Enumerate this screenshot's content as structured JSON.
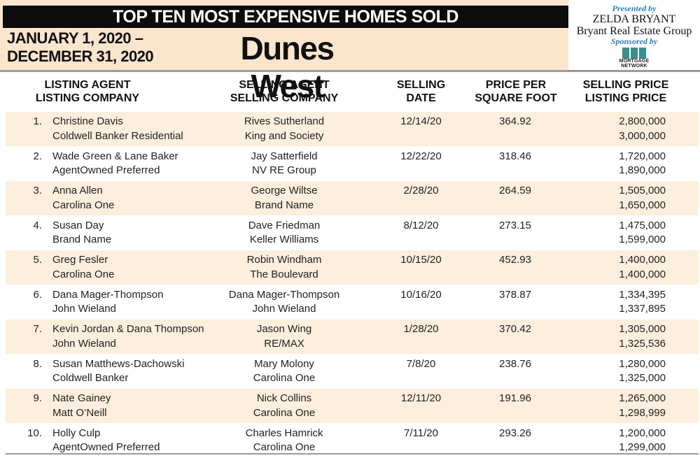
{
  "header": {
    "title": "TOP TEN MOST EXPENSIVE HOMES SOLD",
    "date_line1": "JANUARY 1, 2020 –",
    "date_line2": "DECEMBER 31, 2020",
    "community": "Dunes West"
  },
  "sponsor": {
    "presented_by": "Presented by",
    "agent": "ZELDA BRYANT",
    "group": "Bryant Real Estate Group",
    "sponsored_by": "Sponsored by",
    "logo_text1": "MORTGAGE",
    "logo_text2": "NETWORK",
    "logo_color": "#3a8f8c"
  },
  "columns": {
    "listing_1": "LISTING AGENT",
    "listing_2": "LISTING COMPANY",
    "selling_1": "SELLING AGENT",
    "selling_2": "SELLING COMPANY",
    "date_1": "SELLING",
    "date_2": "DATE",
    "ppsf_1": "PRICE PER",
    "ppsf_2": "SQUARE FOOT",
    "price_1": "SELLING PRICE",
    "price_2": "LISTING PRICE"
  },
  "rows": [
    {
      "num": "1.",
      "listing_agent": "Christine Davis",
      "listing_company": "Coldwell Banker Residential",
      "selling_agent": "Rives Sutherland",
      "selling_company": "King and Society",
      "date": "12/14/20",
      "ppsf": "364.92",
      "selling_price": "2,800,000",
      "listing_price": "3,000,000"
    },
    {
      "num": "2.",
      "listing_agent": "Wade Green & Lane Baker",
      "listing_company": "AgentOwned Preferred",
      "selling_agent": "Jay Satterfield",
      "selling_company": "NV RE Group",
      "date": "12/22/20",
      "ppsf": "318.46",
      "selling_price": "1,720,000",
      "listing_price": "1,890,000"
    },
    {
      "num": "3.",
      "listing_agent": "Anna Allen",
      "listing_company": "Carolina One",
      "selling_agent": "George Wiltse",
      "selling_company": "Brand Name",
      "date": "2/28/20",
      "ppsf": "264.59",
      "selling_price": "1,505,000",
      "listing_price": "1,650,000"
    },
    {
      "num": "4.",
      "listing_agent": "Susan Day",
      "listing_company": "Brand Name",
      "selling_agent": "Dave Friedman",
      "selling_company": "Keller Williams",
      "date": "8/12/20",
      "ppsf": "273.15",
      "selling_price": "1,475,000",
      "listing_price": "1,599,000"
    },
    {
      "num": "5.",
      "listing_agent": "Greg Fesler",
      "listing_company": "Carolina One",
      "selling_agent": "Robin Windham",
      "selling_company": "The Boulevard",
      "date": "10/15/20",
      "ppsf": "452.93",
      "selling_price": "1,400,000",
      "listing_price": "1,400,000"
    },
    {
      "num": "6.",
      "listing_agent": "Dana Mager-Thompson",
      "listing_company": "John Wieland",
      "selling_agent": "Dana Mager-Thompson",
      "selling_company": "John Wieland",
      "date": "10/16/20",
      "ppsf": "378.87",
      "selling_price": "1,334,395",
      "listing_price": "1,337,895"
    },
    {
      "num": "7.",
      "listing_agent": "Kevin Jordan & Dana Thompson",
      "listing_company": "John Wieland",
      "selling_agent": "Jason Wing",
      "selling_company": "RE/MAX",
      "date": "1/28/20",
      "ppsf": "370.42",
      "selling_price": "1,305,000",
      "listing_price": "1,325,536"
    },
    {
      "num": "8.",
      "listing_agent": "Susan Matthews-Dachowski",
      "listing_company": "Coldwell Banker",
      "selling_agent": "Mary Molony",
      "selling_company": "Carolina One",
      "date": "7/8/20",
      "ppsf": "238.76",
      "selling_price": "1,280,000",
      "listing_price": "1,325,000"
    },
    {
      "num": "9.",
      "listing_agent": "Nate Gainey",
      "listing_company": "Matt O’Neill",
      "selling_agent": "Nick Collins",
      "selling_company": "Carolina One",
      "date": "12/11/20",
      "ppsf": "191.96",
      "selling_price": "1,265,000",
      "listing_price": "1,298,999"
    },
    {
      "num": "10.",
      "listing_agent": "Holly Culp",
      "listing_company": "AgentOwned Preferred",
      "selling_agent": "Charles Hamrick",
      "selling_company": "Carolina One",
      "date": "7/11/20",
      "ppsf": "293.26",
      "selling_price": "1,200,000",
      "listing_price": "1,299,000"
    }
  ],
  "colors": {
    "banner_bg": "#fce5cd",
    "row_shade": "#fdeedd",
    "title_bg": "#0c0c0c",
    "accent_blue": "#2a7fc0"
  }
}
